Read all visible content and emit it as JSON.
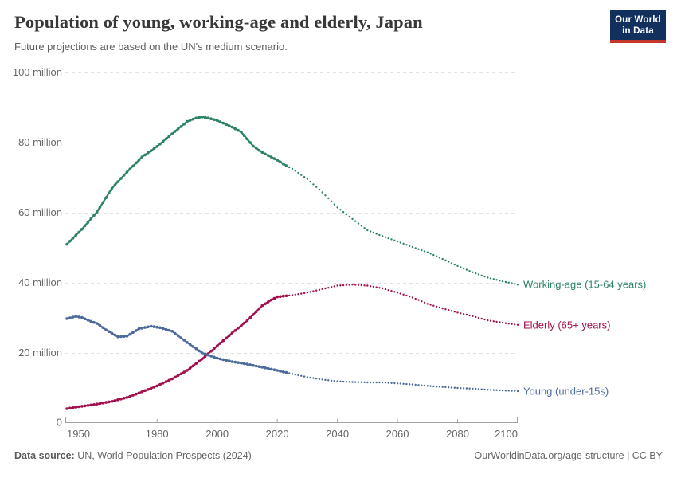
{
  "header": {
    "title": "Population of young, working-age and elderly, Japan",
    "subtitle": "Future projections are based on the UN's medium scenario."
  },
  "logo": {
    "line1": "Our World",
    "line2": "in Data"
  },
  "footer": {
    "source_label": "Data source:",
    "source_text": " UN, World Population Prospects (2024)",
    "license_text": "OurWorldinData.org/age-structure | CC BY"
  },
  "colors": {
    "working_age": "#2c8465",
    "elderly": "#a2104f",
    "young": "#4c6a9c",
    "grid": "#e2e2e2",
    "axis": "#a3a3a3",
    "tick_label": "#666666"
  },
  "chart_data": {
    "type": "line",
    "title": "Population of young, working-age and elderly, Japan",
    "unit": "million people",
    "xlim": [
      1950,
      2100
    ],
    "ylim": [
      0,
      100
    ],
    "x_ticks": [
      1950,
      1980,
      2000,
      2020,
      2040,
      2060,
      2080,
      2100
    ],
    "y_ticks": [
      {
        "value": 0,
        "label": "0"
      },
      {
        "value": 20,
        "label": "20 million"
      },
      {
        "value": 40,
        "label": "40 million"
      },
      {
        "value": 60,
        "label": "60 million"
      },
      {
        "value": 80,
        "label": "80 million"
      },
      {
        "value": 100,
        "label": "100 million"
      }
    ],
    "grid": true,
    "legend_position": "right-end-labels",
    "projection_start": 2023,
    "projection_style": "dotted",
    "series": [
      {
        "name": "Working-age (15-64 years)",
        "slug": "working-age",
        "color": "#2c8465",
        "points": [
          [
            1950,
            51.0
          ],
          [
            1955,
            55.3
          ],
          [
            1960,
            60.2
          ],
          [
            1965,
            67.0
          ],
          [
            1970,
            71.6
          ],
          [
            1975,
            75.9
          ],
          [
            1980,
            78.9
          ],
          [
            1985,
            82.5
          ],
          [
            1990,
            86.0
          ],
          [
            1993,
            87.0
          ],
          [
            1995,
            87.3
          ],
          [
            1997,
            87.0
          ],
          [
            2000,
            86.3
          ],
          [
            2005,
            84.4
          ],
          [
            2008,
            83.0
          ],
          [
            2010,
            81.0
          ],
          [
            2012,
            79.0
          ],
          [
            2015,
            77.2
          ],
          [
            2020,
            75.0
          ],
          [
            2023,
            73.4
          ],
          [
            2025,
            72.5
          ],
          [
            2030,
            69.6
          ],
          [
            2035,
            65.8
          ],
          [
            2040,
            61.5
          ],
          [
            2045,
            58.2
          ],
          [
            2050,
            55.0
          ],
          [
            2055,
            53.3
          ],
          [
            2060,
            51.8
          ],
          [
            2065,
            50.2
          ],
          [
            2070,
            48.7
          ],
          [
            2075,
            46.8
          ],
          [
            2080,
            44.8
          ],
          [
            2085,
            43.0
          ],
          [
            2090,
            41.5
          ],
          [
            2095,
            40.4
          ],
          [
            2100,
            39.5
          ]
        ]
      },
      {
        "name": "Elderly (65+ years)",
        "slug": "elderly",
        "color": "#a2104f",
        "points": [
          [
            1950,
            4.1
          ],
          [
            1955,
            4.8
          ],
          [
            1960,
            5.4
          ],
          [
            1965,
            6.2
          ],
          [
            1970,
            7.3
          ],
          [
            1975,
            8.9
          ],
          [
            1980,
            10.6
          ],
          [
            1985,
            12.6
          ],
          [
            1990,
            15.0
          ],
          [
            1995,
            18.3
          ],
          [
            2000,
            22.0
          ],
          [
            2005,
            25.7
          ],
          [
            2010,
            29.2
          ],
          [
            2015,
            33.5
          ],
          [
            2018,
            35.1
          ],
          [
            2020,
            36.0
          ],
          [
            2023,
            36.3
          ],
          [
            2025,
            36.5
          ],
          [
            2030,
            37.2
          ],
          [
            2035,
            38.2
          ],
          [
            2040,
            39.2
          ],
          [
            2045,
            39.5
          ],
          [
            2050,
            39.2
          ],
          [
            2055,
            38.4
          ],
          [
            2060,
            37.2
          ],
          [
            2065,
            35.8
          ],
          [
            2070,
            34.0
          ],
          [
            2075,
            32.7
          ],
          [
            2080,
            31.5
          ],
          [
            2085,
            30.5
          ],
          [
            2090,
            29.3
          ],
          [
            2095,
            28.6
          ],
          [
            2100,
            28.0
          ]
        ]
      },
      {
        "name": "Young (under-15s)",
        "slug": "young",
        "color": "#4c6a9c",
        "points": [
          [
            1950,
            29.8
          ],
          [
            1953,
            30.4
          ],
          [
            1955,
            30.1
          ],
          [
            1958,
            29.0
          ],
          [
            1960,
            28.4
          ],
          [
            1963,
            26.6
          ],
          [
            1967,
            24.6
          ],
          [
            1970,
            24.8
          ],
          [
            1974,
            26.9
          ],
          [
            1978,
            27.6
          ],
          [
            1981,
            27.2
          ],
          [
            1985,
            26.2
          ],
          [
            1990,
            23.0
          ],
          [
            1995,
            20.0
          ],
          [
            2000,
            18.5
          ],
          [
            2005,
            17.5
          ],
          [
            2010,
            16.8
          ],
          [
            2015,
            15.9
          ],
          [
            2020,
            15.0
          ],
          [
            2023,
            14.4
          ],
          [
            2025,
            14.0
          ],
          [
            2030,
            13.1
          ],
          [
            2035,
            12.4
          ],
          [
            2040,
            11.9
          ],
          [
            2045,
            11.7
          ],
          [
            2050,
            11.6
          ],
          [
            2055,
            11.6
          ],
          [
            2060,
            11.3
          ],
          [
            2065,
            11.0
          ],
          [
            2070,
            10.6
          ],
          [
            2075,
            10.3
          ],
          [
            2080,
            10.0
          ],
          [
            2085,
            9.8
          ],
          [
            2090,
            9.5
          ],
          [
            2095,
            9.3
          ],
          [
            2100,
            9.1
          ]
        ]
      }
    ]
  }
}
